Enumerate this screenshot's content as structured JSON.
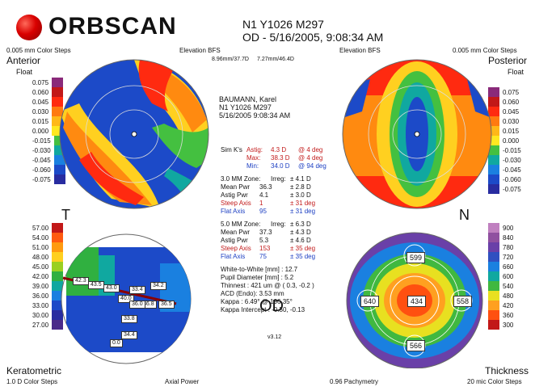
{
  "app": {
    "logo_text": "ORBSCAN",
    "header_line1": "N1 Y1026 M297",
    "header_line2": "OD - 5/16/2005, 9:08:34 AM"
  },
  "anterior": {
    "top_left_caption": "0.005 mm Color Steps",
    "title": "Anterior",
    "subtitle": "Float",
    "top_right_caption": "Elevation BFS",
    "bfs_left": "8.96mm/37.7D",
    "bfs_right": "7.27mm/46.4D",
    "scale": [
      "0.075",
      "0.060",
      "0.045",
      "0.030",
      "0.015",
      "0.000",
      "-0.015",
      "-0.030",
      "-0.045",
      "-0.060",
      "-0.075"
    ]
  },
  "posterior": {
    "top_left_caption": "Elevation BFS",
    "title": "Posterior",
    "subtitle": "Float",
    "top_right_caption": "0.005 mm Color Steps",
    "scale": [
      "0.075",
      "0.060",
      "0.045",
      "0.030",
      "0.015",
      "0.000",
      "-0.015",
      "-0.030",
      "-0.045",
      "-0.060",
      "-0.075"
    ]
  },
  "keratometric": {
    "title": "Keratometric",
    "caption_left": "1.0 D Color Steps",
    "caption_right": "Axial Power",
    "scale": [
      "57.00",
      "54.00",
      "51.00",
      "48.00",
      "45.00",
      "42.00",
      "39.00",
      "36.00",
      "33.00",
      "30.00",
      "27.00"
    ],
    "tags": [
      "42.3",
      "43.5",
      "43.0",
      "40.0",
      "33.4",
      "34.2",
      "36.8",
      "36.5",
      "33.8",
      "34.4",
      "36.0",
      "0.0"
    ]
  },
  "thickness": {
    "title": "Thickness",
    "caption_left": "0.96 Pachymetry",
    "caption_right": "20 mic Color Steps",
    "scale": [
      "900",
      "840",
      "780",
      "720",
      "660",
      "600",
      "540",
      "480",
      "420",
      "360",
      "300"
    ],
    "tags": {
      "top": "599",
      "left": "640",
      "center": "434",
      "right": "558",
      "bottom": "566"
    }
  },
  "side_labels": {
    "temporal": "T",
    "nasal": "N",
    "eye": "OD",
    "version": "v3.12"
  },
  "patient": {
    "name": "BAUMANN, Karel",
    "id": "N1 Y1026 M297",
    "datetime": "5/16/2005 9:08:34 AM"
  },
  "sim_k": {
    "label": "Sim K's",
    "rows": [
      {
        "k": "Astig:",
        "v": "4.3 D",
        "a": "@ 4 deg"
      },
      {
        "k": "Max:",
        "v": "38.3 D",
        "a": "@ 4 deg"
      },
      {
        "k": "Min:",
        "v": "34.0 D",
        "a": "@ 94 deg"
      }
    ]
  },
  "zone3": {
    "title": "3.0 MM Zone:",
    "irreg_label": "Irreg:",
    "irreg": "± 4.1 D",
    "rows": [
      {
        "k": "Mean Pwr",
        "v": "36.3",
        "e": "± 2.8 D"
      },
      {
        "k": "Astig Pwr",
        "v": "4.1",
        "e": "± 3.0 D"
      },
      {
        "k": "Steep Axis",
        "v": "1",
        "e": "± 31 deg"
      },
      {
        "k": "Flat Axis",
        "v": "95",
        "e": "± 31 deg"
      }
    ]
  },
  "zone5": {
    "title": "5.0 MM Zone:",
    "irreg_label": "Irreg:",
    "irreg": "± 6.3 D",
    "rows": [
      {
        "k": "Mean Pwr",
        "v": "37.3",
        "e": "± 4.3 D"
      },
      {
        "k": "Astig Pwr",
        "v": "5.3",
        "e": "± 4.6 D"
      },
      {
        "k": "Steep Axis",
        "v": "153",
        "e": "± 35 deg"
      },
      {
        "k": "Flat Axis",
        "v": "75",
        "e": "± 35 deg"
      }
    ]
  },
  "misc": {
    "rows": [
      "White-to-White [mm] : 12.7",
      "Pupil Diameter [mm] : 5.2",
      "Thinnest : 421 um @ ( 0.3, -0.2 )",
      "ACD (Endo): 3.53 mm",
      "Kappa : 6.49° @ 196.35°",
      "Kappa Intercept : -0.50, -0.13"
    ]
  },
  "colors": {
    "elev": [
      "#8a2a7a",
      "#c21818",
      "#ff2a10",
      "#ff7a10",
      "#ffb818",
      "#ffe820",
      "#44c040",
      "#10a8a0",
      "#1a80e0",
      "#1c4ac8",
      "#282ca0"
    ],
    "kera": [
      "#c21818",
      "#ff5a10",
      "#ff9a10",
      "#ffd020",
      "#9ad020",
      "#30b040",
      "#10a8a0",
      "#1a80e0",
      "#1c4ac8",
      "#282ca0",
      "#4a2a8a"
    ],
    "thick": [
      "#c080c0",
      "#9050a0",
      "#6a40a8",
      "#3050c0",
      "#1a80e0",
      "#10a8a0",
      "#40b840",
      "#e8e020",
      "#ffa020",
      "#ff5010",
      "#c21818"
    ]
  }
}
